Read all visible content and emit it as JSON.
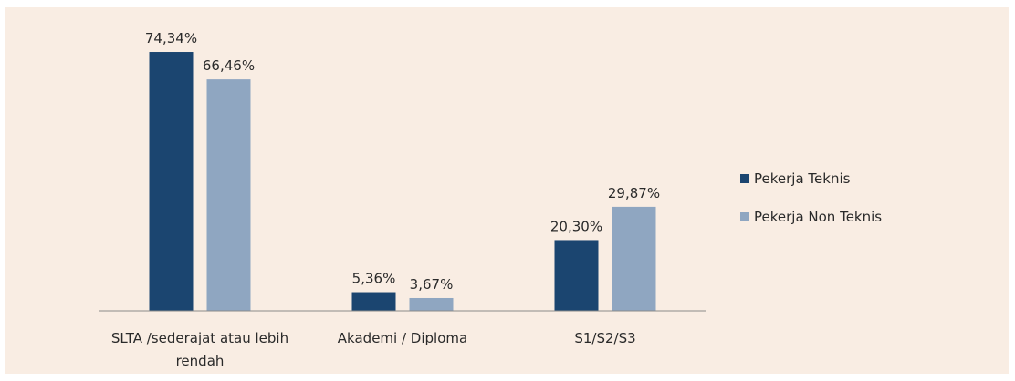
{
  "chart_data": {
    "type": "bar",
    "categories": [
      "SLTA /sederajat atau lebih rendah",
      "Akademi / Diploma",
      "S1/S2/S3"
    ],
    "series": [
      {
        "name": "Pekerja Teknis",
        "color": "#1b4570",
        "values": [
          74.34,
          5.36,
          20.3
        ],
        "value_labels": [
          "74,34%",
          "5,36%",
          "20,30%"
        ]
      },
      {
        "name": "Pekerja Non Teknis",
        "color": "#8fa6c1",
        "values": [
          66.46,
          3.67,
          29.87
        ],
        "value_labels": [
          "66,46%",
          "3,67%",
          "29,87%"
        ]
      }
    ],
    "legend": "right"
  }
}
